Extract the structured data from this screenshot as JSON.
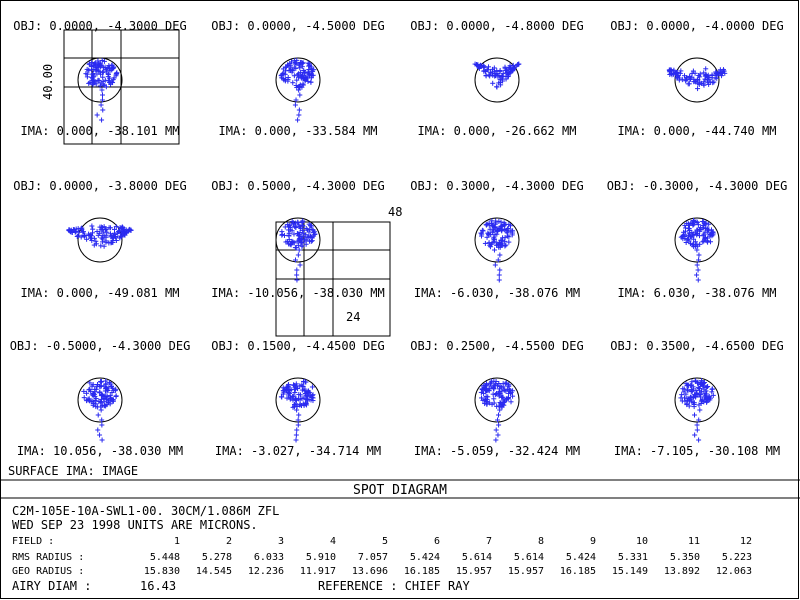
{
  "diagram": {
    "title": "SPOT DIAGRAM",
    "surface_label": "SURFACE IMA: IMAGE",
    "fields": [
      {
        "obj": "OBJ: 0.0000, -4.3000 DEG",
        "ima": "IMA: 0.000, -38.101 MM",
        "shape": "blob"
      },
      {
        "obj": "OBJ: 0.0000, -4.5000 DEG",
        "ima": "IMA: 0.000, -33.584 MM",
        "shape": "blob"
      },
      {
        "obj": "OBJ: 0.0000, -4.8000 DEG",
        "ima": "IMA: 0.000, -26.662 MM",
        "shape": "vee"
      },
      {
        "obj": "OBJ: 0.0000, -4.0000 DEG",
        "ima": "IMA: 0.000, -44.740 MM",
        "shape": "fan"
      },
      {
        "obj": "OBJ: 0.0000, -3.8000 DEG",
        "ima": "IMA: 0.000, -49.081 MM",
        "shape": "wide"
      },
      {
        "obj": "OBJ: 0.5000, -4.3000 DEG",
        "ima": "IMA: -10.056, -38.030 MM",
        "shape": "blob"
      },
      {
        "obj": "OBJ: 0.3000, -4.3000 DEG",
        "ima": "IMA: -6.030, -38.076 MM",
        "shape": "blob"
      },
      {
        "obj": "OBJ: -0.3000, -4.3000 DEG",
        "ima": "IMA: 6.030, -38.076 MM",
        "shape": "blob"
      },
      {
        "obj": "OBJ: -0.5000, -4.3000 DEG",
        "ima": "IMA: 10.056, -38.030 MM",
        "shape": "blob"
      },
      {
        "obj": "OBJ: 0.1500, -4.4500 DEG",
        "ima": "IMA: -3.027, -34.714 MM",
        "shape": "blob"
      },
      {
        "obj": "OBJ: 0.2500, -4.5500 DEG",
        "ima": "IMA: -5.059, -32.424 MM",
        "shape": "blob"
      },
      {
        "obj": "OBJ: 0.3500, -4.6500 DEG",
        "ima": "IMA: -7.105, -30.108 MM",
        "shape": "blob"
      }
    ],
    "scale_boxes": {
      "box1_label": "40.00",
      "box2_top_label": "48",
      "box2_inner_label": "24"
    }
  },
  "info": {
    "line1": "C2M-105E-10A-SWL1-00. 30CM/1.086M ZFL",
    "line2": "WED SEP 23 1998  UNITS ARE MICRONS.",
    "field_label": "FIELD      :",
    "rms_label": "RMS RADIUS :",
    "geo_label": "GEO RADIUS :",
    "airy_label": "AIRY DIAM   :",
    "airy_value": "16.43",
    "reference": "REFERENCE  : CHIEF RAY",
    "field_numbers": [
      "1",
      "2",
      "3",
      "4",
      "5",
      "6",
      "7",
      "8",
      "9",
      "10",
      "11",
      "12"
    ],
    "rms_radius": [
      "5.448",
      "5.278",
      "6.033",
      "5.910",
      "7.057",
      "5.424",
      "5.614",
      "5.614",
      "5.424",
      "5.331",
      "5.350",
      "5.223"
    ],
    "geo_radius": [
      "15.830",
      "14.545",
      "12.236",
      "11.917",
      "13.696",
      "16.185",
      "15.957",
      "15.957",
      "16.185",
      "15.149",
      "13.892",
      "12.063"
    ]
  },
  "colors": {
    "spot": "#2a2af0",
    "line": "#000000",
    "background": "#ffffff"
  }
}
